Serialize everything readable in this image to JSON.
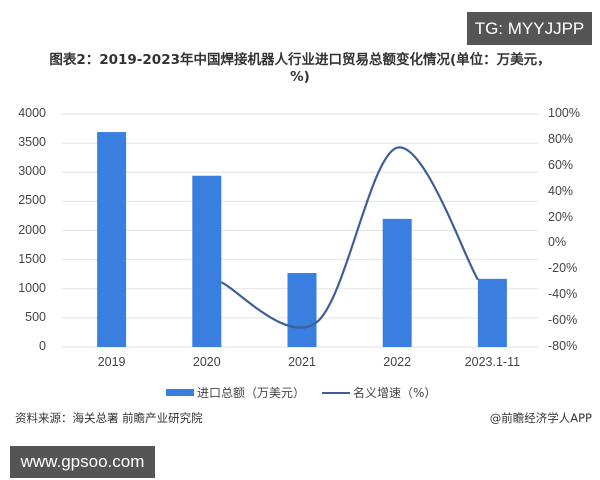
{
  "overlay": {
    "tg_label": "TG: MYYJJPP",
    "www_label": "www.gpsoo.com"
  },
  "footer": {
    "source": "资料来源：海关总署 前瞻产业研究院",
    "credit": "@前瞻经济学人APP"
  },
  "colors": {
    "bar": "#3a7fe0",
    "line": "#3e5f94",
    "grid": "#e2e2e2"
  },
  "chart_data": {
    "type": "bar",
    "title": "图表2：2019-2023年中国焊接机器人行业进口贸易总额变化情况(单位：万美元，%)",
    "categories": [
      "2019",
      "2020",
      "2021",
      "2022",
      "2023.1-11"
    ],
    "series": [
      {
        "name": "进口总额（万美元）",
        "type": "bar",
        "axis": "left",
        "values": [
          3690,
          2940,
          1270,
          2200,
          1170
        ]
      },
      {
        "name": "名义增速（%）",
        "type": "line",
        "axis": "right",
        "smooth": true,
        "values": [
          null,
          -30,
          -61,
          74,
          -28
        ]
      }
    ],
    "left_axis": {
      "ylim": [
        0,
        4000
      ],
      "ticks": [
        "0",
        "500",
        "1000",
        "1500",
        "2000",
        "2500",
        "3000",
        "3500",
        "4000"
      ]
    },
    "right_axis": {
      "ylim": [
        -80,
        100
      ],
      "ticks": [
        "-80%",
        "-60%",
        "-40%",
        "-20%",
        "0%",
        "20%",
        "40%",
        "60%",
        "80%",
        "100%"
      ]
    },
    "xlabel": "",
    "ylabel": "",
    "grid": true,
    "legend_position": "bottom",
    "legend": [
      "进口总额（万美元）",
      "名义增速（%）"
    ]
  }
}
